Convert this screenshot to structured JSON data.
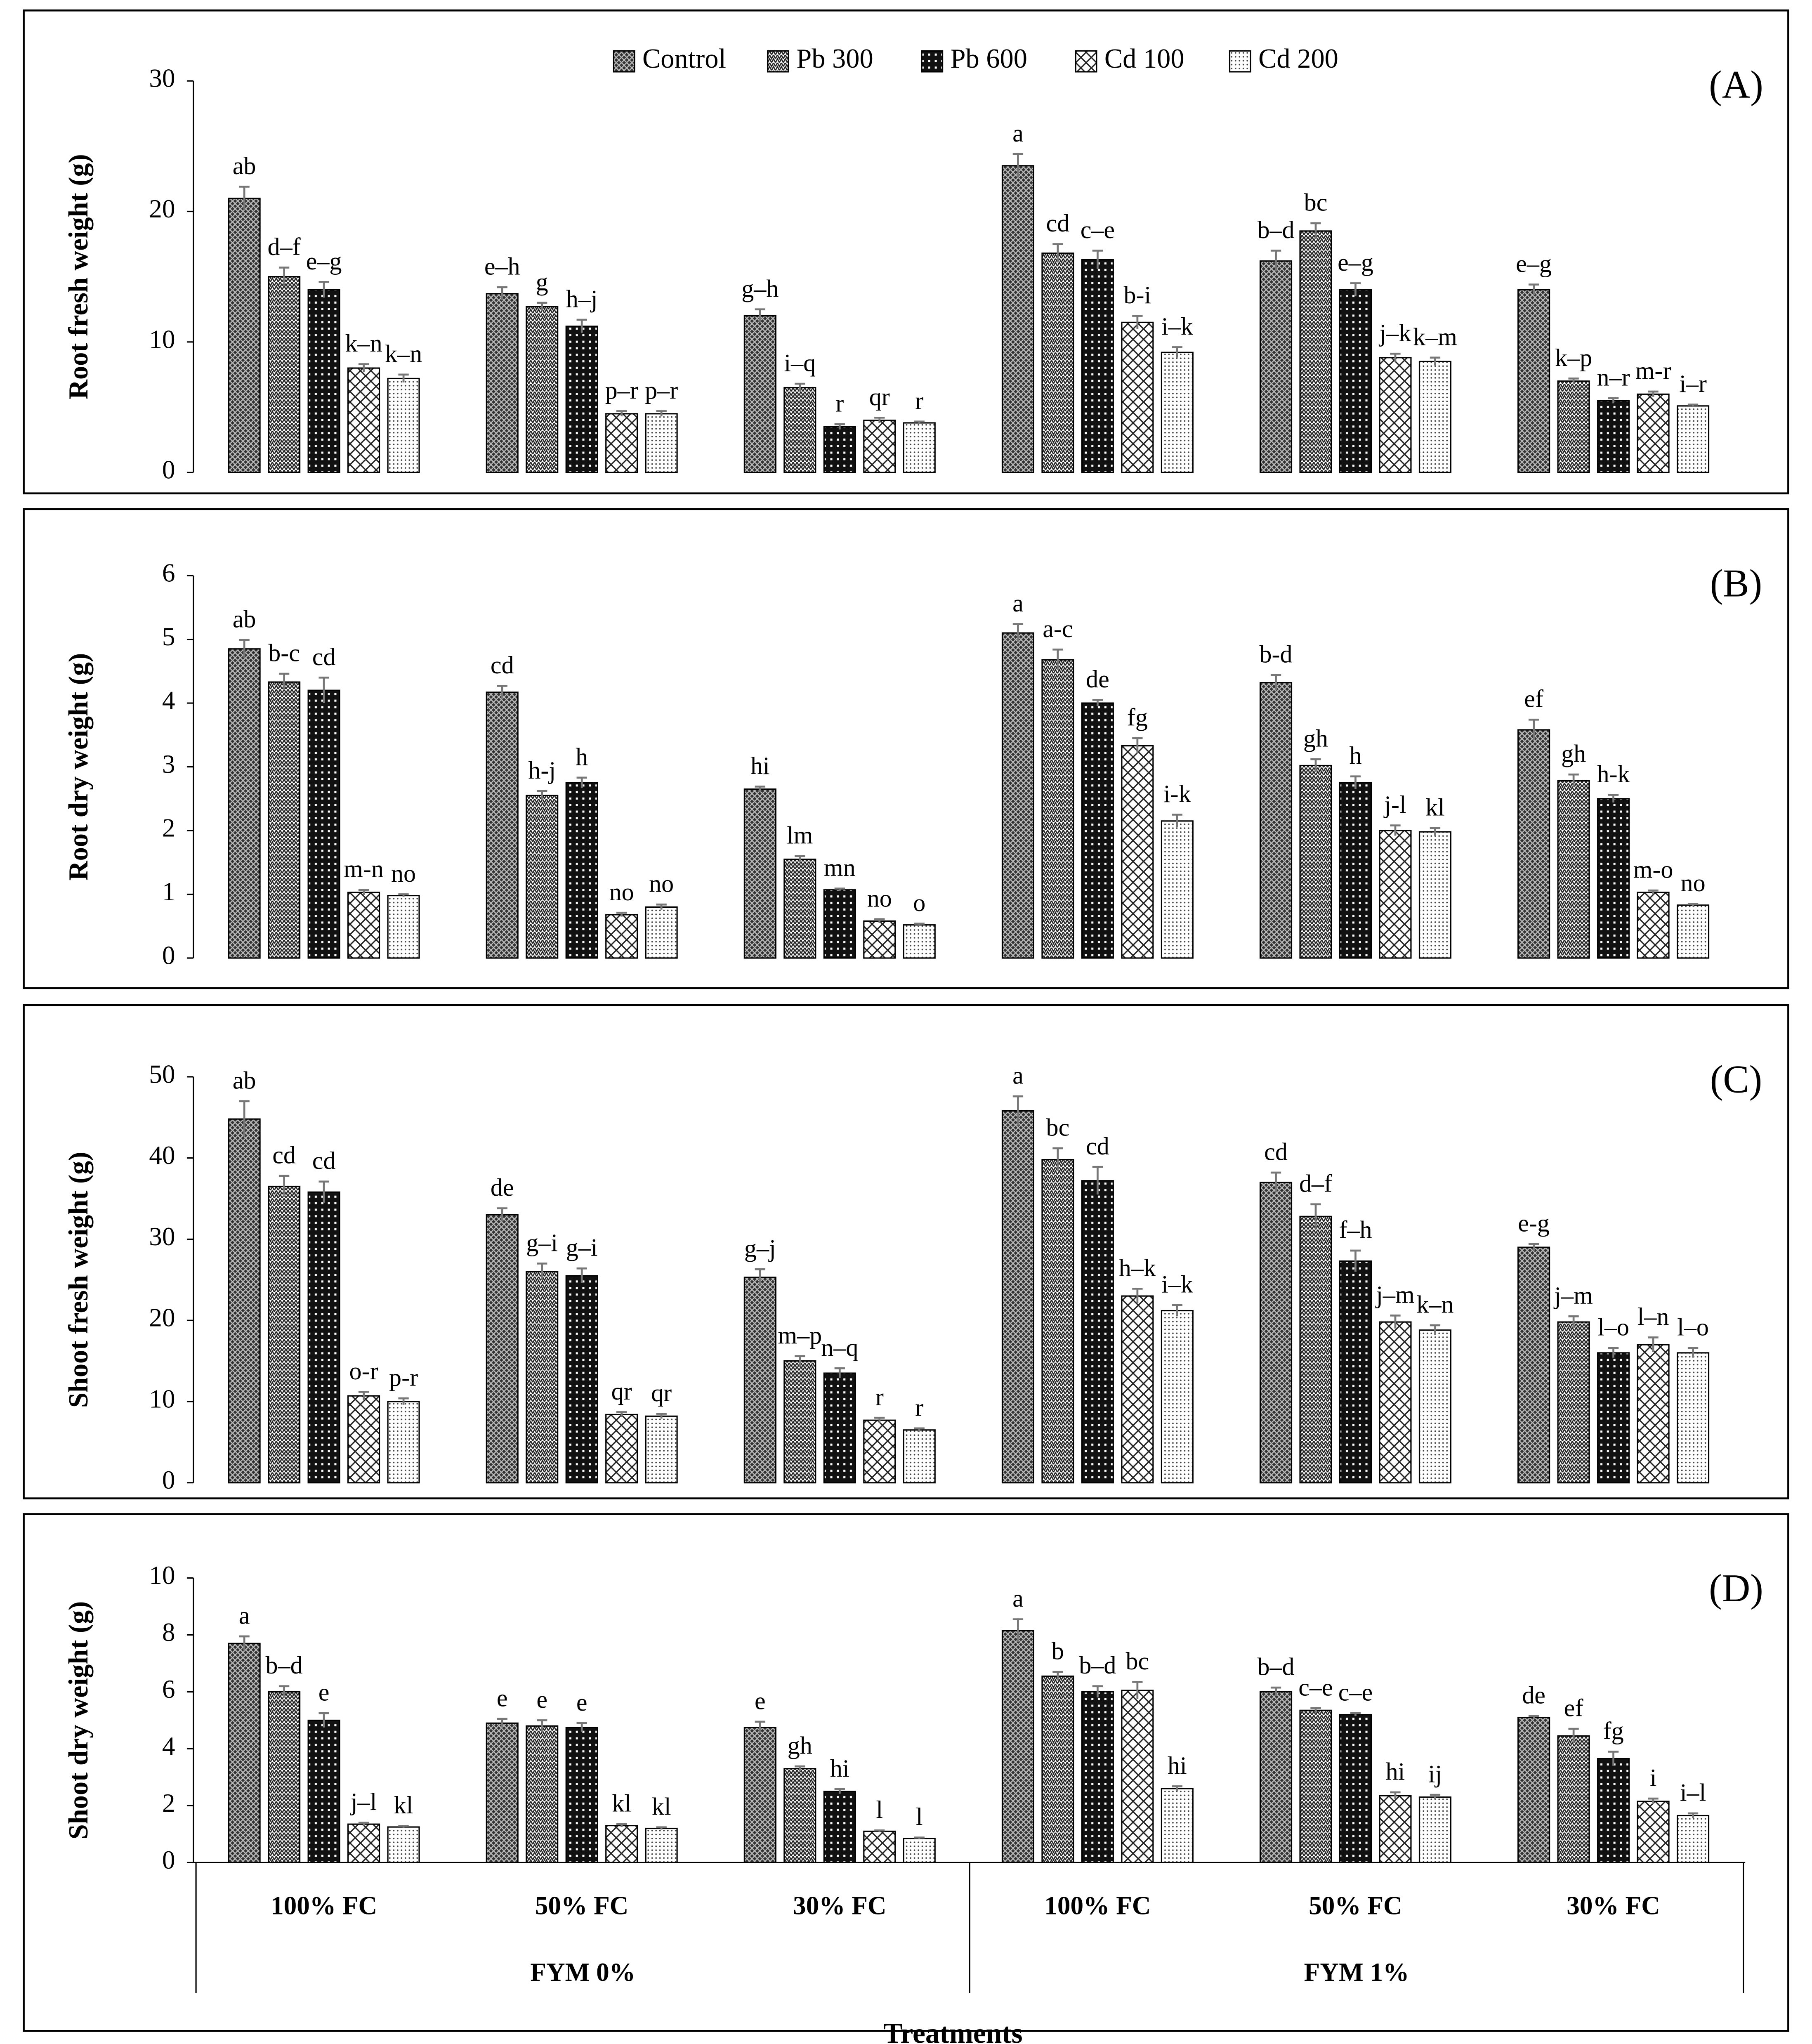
{
  "chart_data": [
    {
      "type": "bar",
      "panel": "(A)",
      "ylabel": "Root fresh weight (g)",
      "ylim": [
        0,
        30
      ],
      "yticks": [
        0,
        10,
        20,
        30
      ],
      "series": [
        {
          "name": "Control",
          "values": [
            21,
            13.7,
            12,
            23.5,
            16.2,
            14
          ],
          "errors": [
            0.9,
            0.5,
            0.5,
            0.9,
            0.8,
            0.4
          ],
          "labels": [
            "ab",
            "e–h",
            "g–h",
            "a",
            "b–d",
            "e–g"
          ]
        },
        {
          "name": "Pb 300",
          "values": [
            15,
            12.7,
            6.5,
            16.8,
            18.5,
            7
          ],
          "errors": [
            0.7,
            0.3,
            0.3,
            0.7,
            0.6,
            0.2
          ],
          "labels": [
            "d–f",
            "g",
            "i–q",
            "cd",
            "bc",
            "k–p"
          ]
        },
        {
          "name": "Pb 600",
          "values": [
            14,
            11.2,
            3.5,
            16.3,
            14,
            5.5
          ],
          "errors": [
            0.6,
            0.5,
            0.2,
            0.7,
            0.5,
            0.2
          ],
          "labels": [
            "e–g",
            "h–j",
            "r",
            "c–e",
            "e–g",
            "n–r"
          ]
        },
        {
          "name": "Cd 100",
          "values": [
            8,
            4.5,
            4,
            11.5,
            8.8,
            6
          ],
          "errors": [
            0.3,
            0.2,
            0.2,
            0.5,
            0.3,
            0.2
          ],
          "labels": [
            "k–n",
            "p–r",
            "qr",
            "b-i",
            "j–k",
            "m-r"
          ]
        },
        {
          "name": "Cd 200",
          "values": [
            7.2,
            4.5,
            3.8,
            9.2,
            8.5,
            5.1
          ],
          "errors": [
            0.3,
            0.2,
            0.1,
            0.4,
            0.3,
            0.1
          ],
          "labels": [
            "k–n",
            "p–r",
            "r",
            "i–k",
            "k–m",
            "i–r"
          ]
        }
      ]
    },
    {
      "type": "bar",
      "panel": "(B)",
      "ylabel": "Root dry weight (g)",
      "ylim": [
        0,
        6
      ],
      "yticks": [
        0,
        1,
        2,
        3,
        4,
        5,
        6
      ],
      "series": [
        {
          "values": [
            4.85,
            4.17,
            2.65,
            5.1,
            4.32,
            3.58
          ],
          "errors": [
            0.14,
            0.1,
            0.04,
            0.14,
            0.12,
            0.16
          ],
          "labels": [
            "ab",
            "cd",
            "hi",
            "a",
            "b-d",
            "ef"
          ]
        },
        {
          "values": [
            4.33,
            2.55,
            1.55,
            4.68,
            3.02,
            2.78
          ],
          "errors": [
            0.13,
            0.07,
            0.05,
            0.16,
            0.1,
            0.1
          ],
          "labels": [
            "b-c",
            "h-j",
            "lm",
            "a-c",
            "gh",
            "gh"
          ]
        },
        {
          "values": [
            4.2,
            2.75,
            1.07,
            4.0,
            2.75,
            2.5
          ],
          "errors": [
            0.2,
            0.08,
            0.02,
            0.05,
            0.1,
            0.06
          ],
          "labels": [
            "cd",
            "h",
            "mn",
            "de",
            "h",
            "h-k"
          ]
        },
        {
          "values": [
            1.03,
            0.68,
            0.58,
            3.33,
            2.0,
            1.03
          ],
          "errors": [
            0.04,
            0.03,
            0.03,
            0.12,
            0.08,
            0.03
          ],
          "labels": [
            "m-n",
            "no",
            "no",
            "fg",
            "j-l",
            "m-o"
          ]
        },
        {
          "values": [
            0.98,
            0.8,
            0.52,
            2.15,
            1.98,
            0.83
          ],
          "errors": [
            0.02,
            0.04,
            0.02,
            0.1,
            0.06,
            0.02
          ],
          "labels": [
            "no",
            "no",
            "o",
            "i-k",
            "kl",
            "no"
          ]
        }
      ]
    },
    {
      "type": "bar",
      "panel": "(C)",
      "ylabel": "Shoot fresh weight (g)",
      "ylim": [
        0,
        50
      ],
      "yticks": [
        0,
        10,
        20,
        30,
        40,
        50
      ],
      "series": [
        {
          "values": [
            44.8,
            33,
            25.3,
            45.8,
            37,
            29
          ],
          "errors": [
            2.2,
            0.8,
            1.0,
            1.8,
            1.2,
            0.4
          ],
          "labels": [
            "ab",
            "de",
            "g–j",
            "a",
            "cd",
            "e-g"
          ]
        },
        {
          "values": [
            36.5,
            26,
            15,
            39.8,
            32.8,
            19.8
          ],
          "errors": [
            1.3,
            1.0,
            0.6,
            1.4,
            1.5,
            0.7
          ],
          "labels": [
            "cd",
            "g–i",
            "m–p",
            "bc",
            "d–f",
            "j–m"
          ]
        },
        {
          "values": [
            35.8,
            25.5,
            13.5,
            37.2,
            27.3,
            16
          ],
          "errors": [
            1.3,
            0.9,
            0.6,
            1.7,
            1.3,
            0.6
          ],
          "labels": [
            "cd",
            "g–i",
            "n–q",
            "cd",
            "f–h",
            "l–o"
          ]
        },
        {
          "values": [
            10.7,
            8.4,
            7.7,
            23,
            19.8,
            17
          ],
          "errors": [
            0.5,
            0.3,
            0.3,
            0.9,
            0.8,
            0.9
          ],
          "labels": [
            "o-r",
            "qr",
            "r",
            "h–k",
            "j–m",
            "l–n"
          ]
        },
        {
          "values": [
            10,
            8.2,
            6.5,
            21.2,
            18.8,
            16
          ],
          "errors": [
            0.4,
            0.3,
            0.2,
            0.7,
            0.6,
            0.6
          ],
          "labels": [
            "p-r",
            "qr",
            "r",
            "i–k",
            "k–n",
            "l–o"
          ]
        }
      ]
    },
    {
      "type": "bar",
      "panel": "(D)",
      "ylabel": "Shoot dry weight (g)",
      "ylim": [
        0,
        10
      ],
      "yticks": [
        0,
        2,
        4,
        6,
        8,
        10
      ],
      "xlabel": "Treatments",
      "categories": [
        "100% FC",
        "50% FC",
        "30% FC",
        "100% FC",
        "50% FC",
        "30% FC"
      ],
      "groups": [
        "FYM 0%",
        "FYM 1%"
      ],
      "series": [
        {
          "values": [
            7.7,
            4.9,
            4.75,
            8.15,
            6.0,
            5.1
          ],
          "errors": [
            0.25,
            0.15,
            0.2,
            0.4,
            0.15,
            0.05
          ],
          "labels": [
            "a",
            "e",
            "e",
            "a",
            "b–d",
            "de"
          ]
        },
        {
          "values": [
            6.0,
            4.8,
            3.3,
            6.55,
            5.35,
            4.45
          ],
          "errors": [
            0.2,
            0.2,
            0.08,
            0.15,
            0.08,
            0.25
          ],
          "labels": [
            "b–d",
            "e",
            "gh",
            "b",
            "c–e",
            "ef"
          ]
        },
        {
          "values": [
            5.0,
            4.75,
            2.5,
            6.0,
            5.2,
            3.65
          ],
          "errors": [
            0.25,
            0.15,
            0.08,
            0.2,
            0.05,
            0.25
          ],
          "labels": [
            "e",
            "e",
            "hi",
            "b–d",
            "c–e",
            "fg"
          ]
        },
        {
          "values": [
            1.35,
            1.3,
            1.1,
            6.05,
            2.35,
            2.15
          ],
          "errors": [
            0.05,
            0.05,
            0.03,
            0.3,
            0.12,
            0.1
          ],
          "labels": [
            "j–l",
            "kl",
            "l",
            "bc",
            "hi",
            "i"
          ]
        },
        {
          "values": [
            1.25,
            1.2,
            0.85,
            2.6,
            2.3,
            1.65
          ],
          "errors": [
            0.04,
            0.04,
            0.03,
            0.08,
            0.08,
            0.08
          ],
          "labels": [
            "kl",
            "kl",
            "l",
            "hi",
            "ij",
            "i–l"
          ]
        }
      ]
    }
  ]
}
